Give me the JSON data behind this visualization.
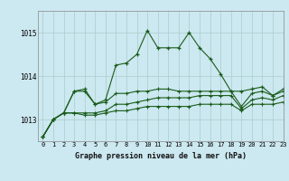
{
  "title": "Graphe pression niveau de la mer (hPa)",
  "bg_color": "#cce8f0",
  "grid_color": "#aacccc",
  "line_color": "#1a5c1a",
  "marker": "+",
  "xlim": [
    -0.5,
    23
  ],
  "ylim": [
    1012.5,
    1015.5
  ],
  "yticks": [
    1013,
    1014,
    1015
  ],
  "xticks": [
    0,
    1,
    2,
    3,
    4,
    5,
    6,
    7,
    8,
    9,
    10,
    11,
    12,
    13,
    14,
    15,
    16,
    17,
    18,
    19,
    20,
    21,
    22,
    23
  ],
  "series_data": {
    "main": [
      1012.6,
      1013.0,
      1013.15,
      1013.65,
      1013.7,
      1013.35,
      1013.45,
      1014.25,
      1014.3,
      1014.5,
      1015.05,
      1014.65,
      1014.65,
      1014.65,
      1015.0,
      1014.65,
      1014.4,
      1014.05,
      1013.65,
      1013.65,
      1013.7,
      1013.75,
      1013.55,
      1013.7
    ],
    "s2": [
      1012.6,
      1013.0,
      1013.15,
      1013.65,
      1013.65,
      1013.35,
      1013.4,
      1013.6,
      1013.6,
      1013.65,
      1013.65,
      1013.7,
      1013.7,
      1013.65,
      1013.65,
      1013.65,
      1013.65,
      1013.65,
      1013.65,
      1013.3,
      1013.6,
      1013.65,
      1013.55,
      1013.65
    ],
    "s3": [
      1012.6,
      1013.0,
      1013.15,
      1013.15,
      1013.15,
      1013.15,
      1013.2,
      1013.35,
      1013.35,
      1013.4,
      1013.45,
      1013.5,
      1013.5,
      1013.5,
      1013.5,
      1013.55,
      1013.55,
      1013.55,
      1013.55,
      1013.25,
      1013.45,
      1013.5,
      1013.45,
      1013.55
    ],
    "s4": [
      1012.6,
      1013.0,
      1013.15,
      1013.15,
      1013.1,
      1013.1,
      1013.15,
      1013.2,
      1013.2,
      1013.25,
      1013.3,
      1013.3,
      1013.3,
      1013.3,
      1013.3,
      1013.35,
      1013.35,
      1013.35,
      1013.35,
      1013.2,
      1013.35,
      1013.35,
      1013.35,
      1013.4
    ]
  }
}
